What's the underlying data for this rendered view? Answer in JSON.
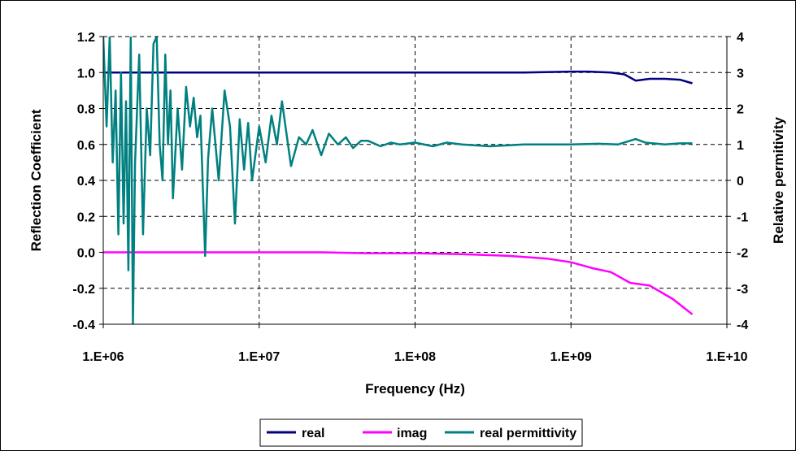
{
  "chart_data": {
    "type": "line",
    "x_scale": "log",
    "xlabel": "Frequency (Hz)",
    "ylabel_left": "Reflection Coefficient",
    "ylabel_right": "Relative permitivity",
    "xlim": [
      1000000,
      10000000000
    ],
    "ylim_left": [
      -0.4,
      1.2
    ],
    "ylim_right": [
      -4,
      4
    ],
    "x_ticks": [
      "1.E+06",
      "1.E+07",
      "1.E+08",
      "1.E+09",
      "1.E+10"
    ],
    "x_tick_values": [
      1000000,
      10000000,
      100000000,
      1000000000,
      10000000000
    ],
    "y_left_ticks": [
      "1.2",
      "1.0",
      "0.8",
      "0.6",
      "0.4",
      "0.2",
      "0.0",
      "-0.2",
      "-0.4"
    ],
    "y_left_tick_values": [
      1.2,
      1.0,
      0.8,
      0.6,
      0.4,
      0.2,
      0.0,
      -0.2,
      -0.4
    ],
    "y_right_ticks": [
      "4",
      "3",
      "2",
      "1",
      "0",
      "-1",
      "-2",
      "-3",
      "-4"
    ],
    "y_right_tick_values": [
      4,
      3,
      2,
      1,
      0,
      -1,
      -2,
      -3,
      -4
    ],
    "grid": true,
    "grid_style": "dashed",
    "legend_position": "bottom",
    "colors": {
      "real": "#000080",
      "imag": "#ff00ff",
      "real_permittivity": "#008080"
    },
    "series": [
      {
        "name": "real",
        "axis": "left",
        "color": "#000080",
        "x": [
          1000000,
          2000000,
          4000000,
          8000000,
          20000000,
          50000000,
          100000000,
          200000000,
          500000000,
          1000000000,
          1300000000,
          1800000000,
          2200000000,
          2600000000,
          3200000000,
          4000000000,
          5000000000,
          6000000000
        ],
        "y": [
          1.0,
          1.0,
          1.0,
          1.0,
          1.0,
          1.0,
          1.0,
          1.0,
          1.0,
          1.005,
          1.005,
          1.0,
          0.99,
          0.955,
          0.965,
          0.965,
          0.96,
          0.94
        ]
      },
      {
        "name": "imag",
        "axis": "left",
        "color": "#ff00ff",
        "x": [
          1000000,
          10000000,
          25000000,
          50000000,
          100000000,
          200000000,
          400000000,
          700000000,
          1000000000,
          1400000000,
          1800000000,
          2400000000,
          3200000000,
          4500000000,
          6000000000
        ],
        "y": [
          0.0,
          0.0,
          0.0,
          -0.005,
          -0.005,
          -0.01,
          -0.02,
          -0.035,
          -0.055,
          -0.09,
          -0.11,
          -0.17,
          -0.185,
          -0.26,
          -0.345
        ]
      },
      {
        "name": "real permittivity",
        "axis": "right",
        "color": "#008080",
        "x": [
          1000000,
          1050000,
          1100000,
          1150000,
          1200000,
          1250000,
          1300000,
          1350000,
          1400000,
          1450000,
          1500000,
          1550000,
          1600000,
          1700000,
          1800000,
          1900000,
          2000000,
          2100000,
          2200000,
          2300000,
          2400000,
          2500000,
          2600000,
          2700000,
          2800000,
          3000000,
          3200000,
          3400000,
          3600000,
          3800000,
          4000000,
          4200000,
          4500000,
          4700000,
          5000000,
          5500000,
          6000000,
          6500000,
          7000000,
          7500000,
          8000000,
          8500000,
          9000000,
          10000000,
          11000000,
          12000000,
          13000000,
          14000000,
          16000000,
          18000000,
          20000000,
          22000000,
          25000000,
          28000000,
          32000000,
          36000000,
          40000000,
          45000000,
          50000000,
          60000000,
          70000000,
          80000000,
          100000000,
          130000000,
          160000000,
          200000000,
          300000000,
          500000000,
          800000000,
          1000000000,
          1500000000,
          2000000000,
          2600000000,
          3000000000,
          4000000000,
          5000000000,
          6000000000
        ],
        "y": [
          4,
          1.5,
          4,
          0.5,
          2.5,
          -1.5,
          3,
          -1.2,
          2.2,
          -2.5,
          4,
          -4,
          0.5,
          3.5,
          -1.5,
          2,
          0.7,
          3.8,
          4,
          1,
          0,
          3.5,
          1,
          2.5,
          -0.5,
          2,
          0.3,
          2.6,
          1.5,
          2.3,
          1.2,
          1.8,
          -2.1,
          0.6,
          2.0,
          0,
          2.5,
          1.5,
          -1.2,
          1.7,
          0.3,
          1.6,
          0,
          1.5,
          0.5,
          1.8,
          1.0,
          2.2,
          0.4,
          1.2,
          1.0,
          1.4,
          0.7,
          1.3,
          1.0,
          1.2,
          0.9,
          1.1,
          1.1,
          0.95,
          1.05,
          1.0,
          1.05,
          0.95,
          1.05,
          1.0,
          0.95,
          1.0,
          1.0,
          1.0,
          1.02,
          1.0,
          1.15,
          1.05,
          1.0,
          1.03,
          1.03
        ]
      }
    ]
  }
}
